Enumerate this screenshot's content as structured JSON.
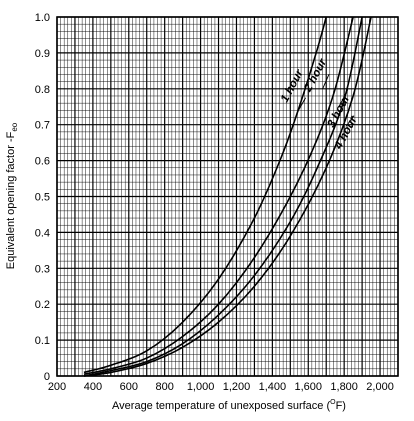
{
  "chart_data": {
    "type": "line",
    "title": "",
    "xlabel": "Average temperature of unexposed surface (",
    "xlabel_unit_super": "O",
    "xlabel_unit": "F)",
    "ylabel": "Equivalent opening factor -F",
    "ylabel_sub": "eo",
    "xlim": [
      200,
      2100
    ],
    "ylim": [
      0,
      1.0
    ],
    "x_ticks": [
      {
        "value": 200,
        "label": "200"
      },
      {
        "value": 400,
        "label": "400"
      },
      {
        "value": 600,
        "label": "600"
      },
      {
        "value": 800,
        "label": "800"
      },
      {
        "value": 1000,
        "label": "1,000"
      },
      {
        "value": 1200,
        "label": "1,200"
      },
      {
        "value": 1400,
        "label": "1,400"
      },
      {
        "value": 1600,
        "label": "1,600"
      },
      {
        "value": 1800,
        "label": "1,800"
      },
      {
        "value": 2000,
        "label": "2,000"
      }
    ],
    "y_ticks": [
      {
        "value": 0,
        "label": "0"
      },
      {
        "value": 0.1,
        "label": "0.1"
      },
      {
        "value": 0.2,
        "label": "0.2"
      },
      {
        "value": 0.3,
        "label": "0.3"
      },
      {
        "value": 0.4,
        "label": "0.4"
      },
      {
        "value": 0.5,
        "label": "0.5"
      },
      {
        "value": 0.6,
        "label": "0.6"
      },
      {
        "value": 0.7,
        "label": "0.7"
      },
      {
        "value": 0.8,
        "label": "0.8"
      },
      {
        "value": 0.9,
        "label": "0.9"
      },
      {
        "value": 1.0,
        "label": "1.0"
      }
    ],
    "grid": true,
    "series": [
      {
        "name": "1 hour",
        "x": [
          350,
          500,
          700,
          900,
          1100,
          1300,
          1450,
          1550,
          1650,
          1700
        ],
        "y": [
          0.01,
          0.03,
          0.07,
          0.15,
          0.27,
          0.44,
          0.61,
          0.75,
          0.91,
          1.0
        ]
      },
      {
        "name": "2 hour",
        "x": [
          350,
          500,
          700,
          900,
          1100,
          1300,
          1500,
          1650,
          1750,
          1850
        ],
        "y": [
          0.005,
          0.02,
          0.05,
          0.11,
          0.2,
          0.33,
          0.5,
          0.66,
          0.8,
          1.0
        ]
      },
      {
        "name": "3 hour",
        "x": [
          350,
          500,
          700,
          900,
          1100,
          1300,
          1500,
          1650,
          1800,
          1900
        ],
        "y": [
          0.0,
          0.015,
          0.04,
          0.09,
          0.17,
          0.28,
          0.43,
          0.58,
          0.77,
          1.0
        ]
      },
      {
        "name": "4 hour",
        "x": [
          350,
          500,
          700,
          900,
          1100,
          1300,
          1500,
          1700,
          1850,
          1950
        ],
        "y": [
          0.0,
          0.01,
          0.035,
          0.08,
          0.15,
          0.25,
          0.39,
          0.58,
          0.78,
          1.0
        ]
      }
    ]
  }
}
